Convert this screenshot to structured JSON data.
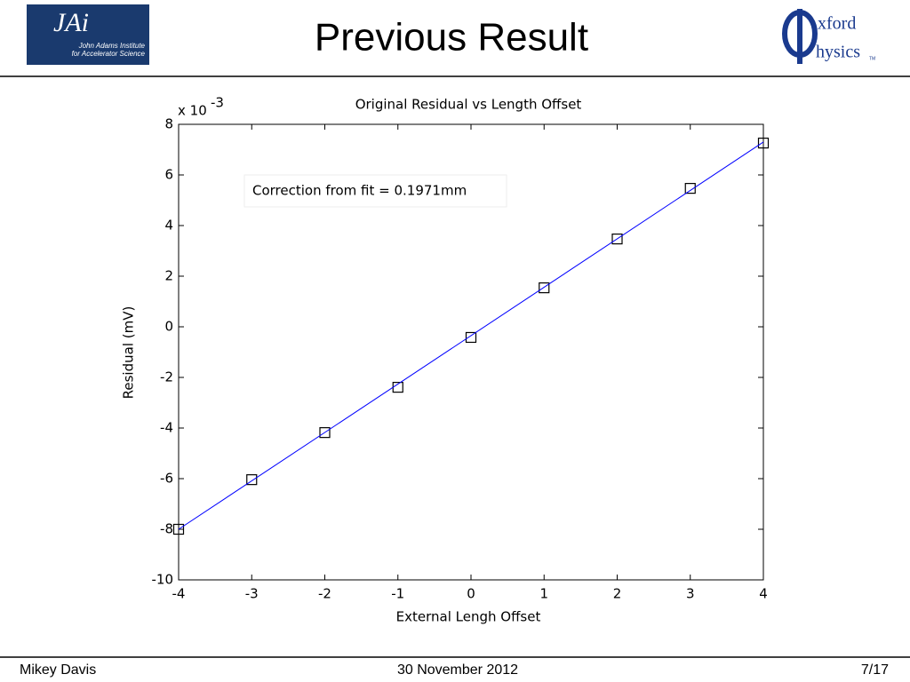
{
  "header": {
    "title": "Previous Result",
    "logo_left": {
      "mark": "JAi",
      "line1": "John Adams Institute",
      "line2": "for Accelerator Science"
    },
    "logo_right": {
      "top": "xford",
      "bottom": "hysics",
      "tm": "TM"
    }
  },
  "footer": {
    "author": "Mikey Davis",
    "date": "30 November 2012",
    "page": "7/17"
  },
  "chart_data": {
    "type": "scatter",
    "title": "Original Residual vs Length Offset",
    "x_label": "External Lengh Offset",
    "y_label": "Residual (mV)",
    "y_multiplier": {
      "base": "x 10",
      "exponent": "-3"
    },
    "annotation": "Correction from fit = 0.1971mm",
    "xlim": [
      -4,
      4
    ],
    "ylim": [
      -10,
      8
    ],
    "xticks": [
      -4,
      -3,
      -2,
      -1,
      0,
      1,
      2,
      3,
      4
    ],
    "yticks": [
      -10,
      -8,
      -6,
      -4,
      -2,
      0,
      2,
      4,
      6,
      8
    ],
    "series": [
      {
        "color": "#000000",
        "marker": "square",
        "x": [
          -4,
          -3,
          -2,
          -1,
          0,
          1,
          2,
          3,
          4
        ],
        "values": [
          -8.0,
          -6.04,
          -4.18,
          -2.39,
          -0.42,
          1.54,
          3.47,
          5.47,
          7.26
        ]
      },
      {
        "color": "#0000ff",
        "marker": "none",
        "x": [
          -4,
          4
        ],
        "values": [
          -8.0,
          7.3
        ]
      }
    ]
  }
}
